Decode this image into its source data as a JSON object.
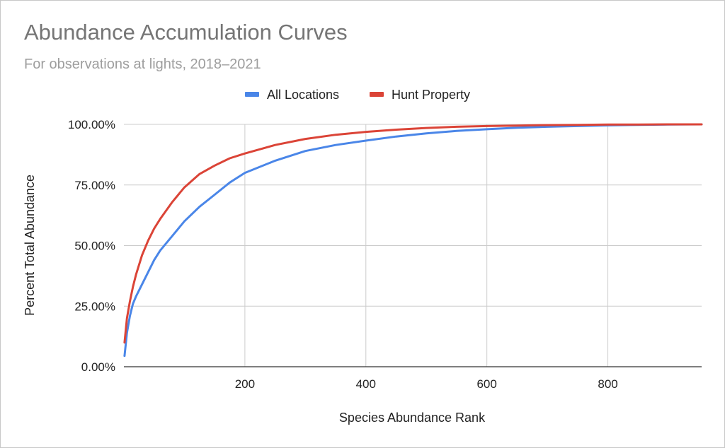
{
  "chart_data": {
    "type": "line",
    "title": "Abundance Accumulation Curves",
    "subtitle": "For observations at lights, 2018–2021",
    "xlabel": "Species Abundance Rank",
    "ylabel": "Percent Total Abundance",
    "xlim": [
      0,
      955
    ],
    "ylim": [
      0,
      100
    ],
    "x_ticks": [
      200,
      400,
      600,
      800
    ],
    "y_ticks": [
      0,
      25,
      50,
      75,
      100
    ],
    "y_tick_labels": [
      "0.00%",
      "25.00%",
      "50.00%",
      "75.00%",
      "100.00%"
    ],
    "grid": true,
    "legend_position": "top",
    "series": [
      {
        "name": "All Locations",
        "color": "#4a86e8",
        "x": [
          1,
          5,
          10,
          15,
          20,
          30,
          40,
          50,
          60,
          80,
          100,
          125,
          150,
          175,
          200,
          250,
          300,
          350,
          400,
          450,
          500,
          550,
          600,
          650,
          700,
          750,
          800,
          850,
          900,
          955
        ],
        "y": [
          4.5,
          14,
          21,
          26,
          29,
          34,
          39,
          44,
          48,
          54,
          60,
          66,
          71,
          76,
          80,
          85,
          89,
          91.5,
          93.3,
          95,
          96.3,
          97.3,
          98,
          98.6,
          99,
          99.3,
          99.6,
          99.8,
          99.9,
          100
        ]
      },
      {
        "name": "Hunt Property",
        "color": "#db4437",
        "x": [
          1,
          5,
          10,
          15,
          20,
          30,
          40,
          50,
          60,
          80,
          100,
          125,
          150,
          175,
          200,
          250,
          300,
          350,
          400,
          450,
          500,
          550,
          600,
          650,
          700,
          750,
          800,
          850,
          900,
          955
        ],
        "y": [
          10,
          20,
          27,
          33,
          38,
          46,
          52,
          57,
          61,
          68,
          74,
          79.5,
          83,
          86,
          88,
          91.5,
          94,
          95.7,
          96.9,
          97.8,
          98.5,
          99,
          99.3,
          99.5,
          99.7,
          99.8,
          99.9,
          99.95,
          100,
          100
        ]
      }
    ]
  }
}
